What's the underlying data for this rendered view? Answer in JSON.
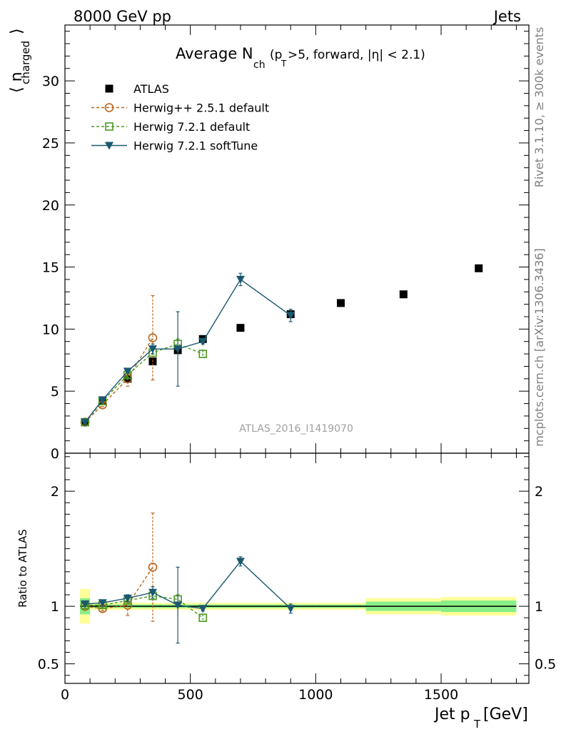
{
  "header": {
    "left": "8000 GeV pp",
    "right": "Jets"
  },
  "side_labels": {
    "rivet": "Rivet 3.1.10, ≥ 300k events",
    "mcplots": "mcplots.cern.ch [arXiv:1306.3436]"
  },
  "watermark": "ATLAS_2016_I1419070",
  "colors": {
    "atlas": "#000000",
    "herwig_pp": "#b8641c",
    "herwig721": "#4a9a1e",
    "softtune": "#1b5870",
    "band_outer": "#ffff99",
    "band_inner": "#88ee88",
    "ratio_line": "#2aa02a"
  },
  "chart_data": {
    "type": "scatter",
    "title_main": "Average N",
    "title_sub": "ch",
    "title_cond_1": "(p",
    "title_cond_sub": "T",
    "title_cond_2": ">5, forward, |η| < 2.1)",
    "xlabel_main": "Jet p",
    "xlabel_sub": "T",
    "xlabel_unit": "[GeV]",
    "ylabel_main": "⟨ n",
    "ylabel_sub": "charged",
    "ylabel_close": "⟩",
    "ratio_ylabel": "Ratio to ATLAS",
    "xlim": [
      0,
      1850
    ],
    "ylim": [
      0,
      34.5
    ],
    "ratio_ylim": [
      0.33,
      2.33
    ],
    "main_yticks": [
      0,
      5,
      10,
      15,
      20,
      25,
      30
    ],
    "ratio_yticks": [
      0.5,
      1,
      2
    ],
    "xticks": [
      0,
      500,
      1000,
      1500
    ],
    "grid": false,
    "legend_position": "top-left",
    "series": [
      {
        "name": "ATLAS",
        "kind": "data",
        "x": [
          80,
          150,
          250,
          350,
          450,
          550,
          700,
          900,
          1100,
          1350,
          1650
        ],
        "y": [
          2.5,
          4.2,
          6.0,
          7.4,
          8.3,
          9.2,
          10.1,
          11.2,
          12.1,
          12.8,
          14.9
        ],
        "xerr": [
          20,
          50,
          50,
          50,
          50,
          50,
          100,
          100,
          100,
          150,
          150
        ],
        "ratio_band_outer": [
          0.15,
          0.03,
          0.03,
          0.03,
          0.03,
          0.03,
          0.03,
          0.03,
          0.03,
          0.07,
          0.08
        ],
        "ratio_band_inner": [
          0.07,
          0.015,
          0.015,
          0.015,
          0.015,
          0.015,
          0.015,
          0.015,
          0.015,
          0.04,
          0.05
        ]
      },
      {
        "name": "Herwig++ 2.5.1 default",
        "kind": "circle",
        "dash": true,
        "x": [
          80,
          150,
          250,
          350
        ],
        "y": [
          2.5,
          3.9,
          6.0,
          9.3
        ],
        "yerr": [
          0.15,
          0.15,
          0.6,
          3.4
        ],
        "ratio": [
          1.0,
          0.98,
          1.01,
          1.34
        ],
        "ratio_err": [
          0.02,
          0.02,
          0.09,
          0.47
        ]
      },
      {
        "name": "Herwig 7.2.1 default",
        "kind": "square",
        "dash": true,
        "x": [
          80,
          150,
          250,
          350,
          450,
          550
        ],
        "y": [
          2.5,
          4.2,
          6.3,
          8.1,
          8.8,
          8.0
        ],
        "yerr": [
          0.1,
          0.1,
          0.2,
          0.3,
          0.4,
          0.3
        ],
        "ratio": [
          1.01,
          1.01,
          1.05,
          1.09,
          1.06,
          0.9
        ],
        "ratio_err": [
          0.01,
          0.02,
          0.02,
          0.03,
          0.04,
          0.03
        ]
      },
      {
        "name": "Herwig 7.2.1 softTune",
        "kind": "triangle",
        "dash": false,
        "x": [
          80,
          150,
          250,
          350,
          450,
          550,
          700,
          900
        ],
        "y": [
          2.5,
          4.3,
          6.6,
          8.4,
          8.4,
          9.0,
          14.0,
          11.1
        ],
        "yerr": [
          0.05,
          0.1,
          0.15,
          0.4,
          3.0,
          0.2,
          0.5,
          0.5
        ],
        "ratio": [
          1.02,
          1.03,
          1.07,
          1.12,
          1.01,
          0.98,
          1.39,
          0.98
        ],
        "ratio_err": [
          0.01,
          0.02,
          0.03,
          0.05,
          0.33,
          0.02,
          0.04,
          0.04
        ]
      }
    ]
  }
}
